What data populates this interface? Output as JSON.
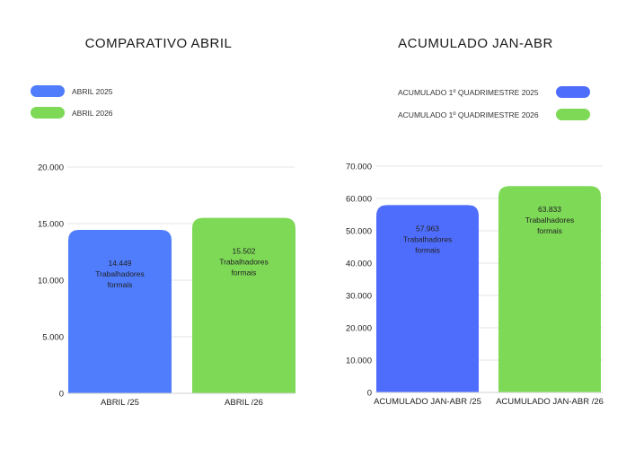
{
  "chart_data": [
    {
      "type": "bar",
      "title": "COMPARATIVO ABRIL",
      "categories": [
        "ABRIL /25",
        "ABRIL /26"
      ],
      "series": [
        {
          "name": "ABRIL 2025",
          "color": "#4f7dfc",
          "values": [
            14449,
            null
          ]
        },
        {
          "name": "ABRIL 2026",
          "color": "#7ed957",
          "values": [
            null,
            15502
          ]
        }
      ],
      "values": [
        14449,
        15502
      ],
      "colors": [
        "#4f7dfc",
        "#7ed957"
      ],
      "data_labels": [
        [
          "14.449",
          "Trabalhadores",
          "formais"
        ],
        [
          "15.502",
          "Trabalhadores",
          "formais"
        ]
      ],
      "yticks": [
        0,
        5000,
        10000,
        15000,
        20000
      ],
      "ytick_labels": [
        "0",
        "5.000",
        "10.000",
        "15.000",
        "20.000"
      ],
      "ylim": [
        0,
        20000
      ],
      "grid": true,
      "legend_position": "top-left",
      "xlabel": "",
      "ylabel": ""
    },
    {
      "type": "bar",
      "title": "ACUMULADO JAN-ABR",
      "categories": [
        "ACUMULADO JAN-ABR /25",
        "ACUMULADO JAN-ABR /26"
      ],
      "series": [
        {
          "name": "ACUMULADO 1º QUADRIMESTRE 2025",
          "color": "#4f6dfc",
          "values": [
            57963,
            null
          ]
        },
        {
          "name": "ACUMULADO 1º QUADRIMESTRE 2026",
          "color": "#7ed957",
          "values": [
            null,
            63833
          ]
        }
      ],
      "values": [
        57963,
        63833
      ],
      "colors": [
        "#4f6dfc",
        "#7ed957"
      ],
      "data_labels": [
        [
          "57.963",
          "Trabalhadores",
          "formais"
        ],
        [
          "63.833",
          "Trabalhadores",
          "formais"
        ]
      ],
      "yticks": [
        0,
        10000,
        20000,
        30000,
        40000,
        50000,
        60000,
        70000
      ],
      "ytick_labels": [
        "0",
        "10.000",
        "20.000",
        "30.000",
        "40.000",
        "50.000",
        "60.000",
        "70.000"
      ],
      "ylim": [
        0,
        70000
      ],
      "grid": true,
      "legend_position": "top-right",
      "xlabel": "",
      "ylabel": ""
    }
  ]
}
